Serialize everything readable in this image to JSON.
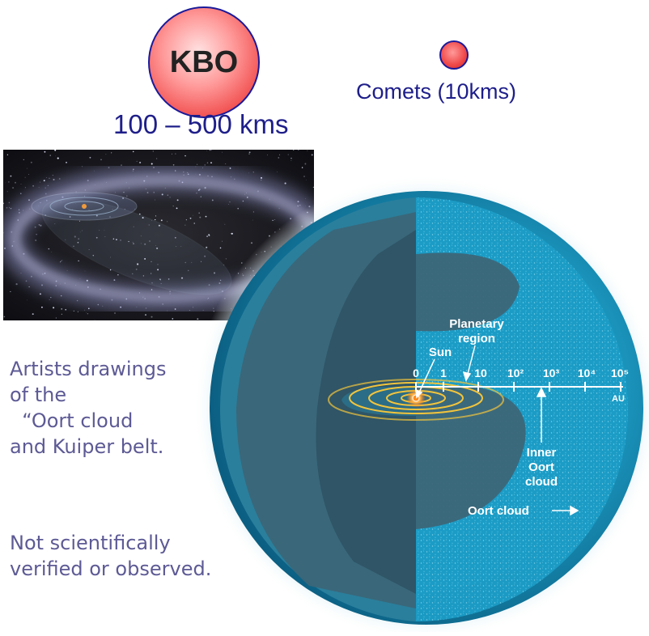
{
  "kbo": {
    "label": "KBO",
    "size": "100 – 500 kms"
  },
  "comets": {
    "label": "Comets (10kms)"
  },
  "diagram": {
    "planetary_region": [
      "Planetary",
      "region"
    ],
    "sun": "Sun",
    "ticks": [
      "0",
      "1",
      "10",
      "10²",
      "10³",
      "10⁴",
      "10⁵"
    ],
    "unit": "AU",
    "inner_oort": [
      "Inner",
      "Oort",
      "cloud"
    ],
    "oort_cloud": "Oort cloud"
  },
  "caption": {
    "lines": [
      "Artists drawings",
      "of the",
      "  “Oort cloud",
      "and Kuiper belt."
    ],
    "note": [
      "Not scientifically",
      "verified or observed."
    ]
  },
  "colors": {
    "title_text": "#1e1e8a",
    "caption_text": "#5d5a95",
    "kbo_fill": "#f04848",
    "oort_outer": "#1aa7cc",
    "oort_inner": "#3d5f70"
  }
}
